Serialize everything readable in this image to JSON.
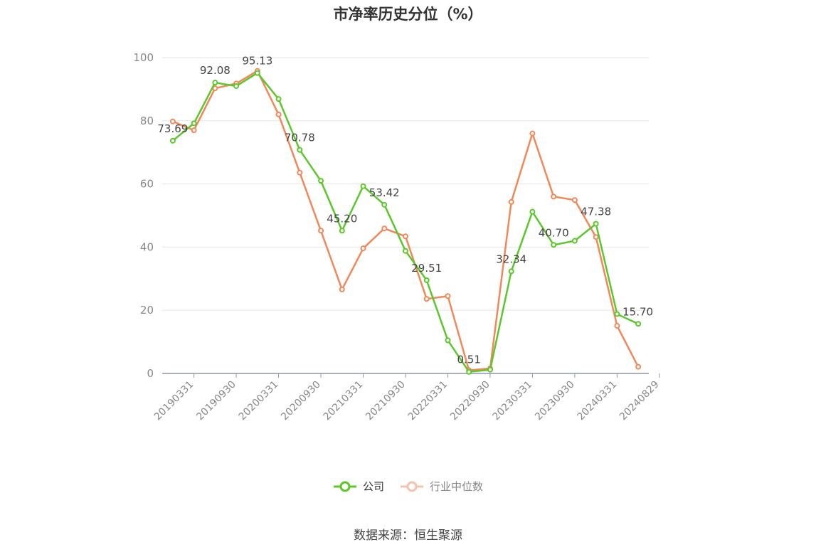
{
  "chart_data": {
    "type": "line",
    "title": "市净率历史分位（%）",
    "ylim": [
      0,
      100
    ],
    "yticks": [
      0,
      20,
      40,
      60,
      80,
      100
    ],
    "grid": true,
    "legend_position": "bottom",
    "x_tick_labels": [
      "20190331",
      "20190930",
      "20200331",
      "20200930",
      "20210331",
      "20210930",
      "20220331",
      "20220930",
      "20230331",
      "20230930",
      "20240331",
      "20240829"
    ],
    "series": [
      {
        "name": "公司",
        "color": "#5cc72a",
        "values": [
          73.69,
          79.2,
          92.08,
          91.0,
          95.13,
          86.9,
          70.78,
          61.0,
          45.2,
          59.3,
          53.42,
          38.8,
          29.51,
          10.5,
          0.51,
          1.2,
          32.34,
          51.2,
          40.7,
          42.0,
          47.38,
          18.8,
          15.7
        ],
        "labels": {
          "0": "73.69",
          "2": "92.08",
          "4": "95.13",
          "6": "70.78",
          "8": "45.20",
          "10": "53.42",
          "12": "29.51",
          "14": "0.51",
          "16": "32.34",
          "18": "40.70",
          "20": "47.38",
          "22": "15.70"
        }
      },
      {
        "name": "行业中位数",
        "color": "#f0885a",
        "values": [
          79.8,
          77.0,
          90.3,
          91.8,
          95.8,
          82.0,
          63.6,
          45.2,
          26.6,
          39.6,
          45.9,
          43.4,
          23.6,
          24.5,
          1.0,
          1.6,
          54.3,
          76.0,
          56.0,
          54.9,
          43.2,
          15.1,
          2.1
        ]
      }
    ]
  },
  "source": "数据来源：恒生聚源"
}
